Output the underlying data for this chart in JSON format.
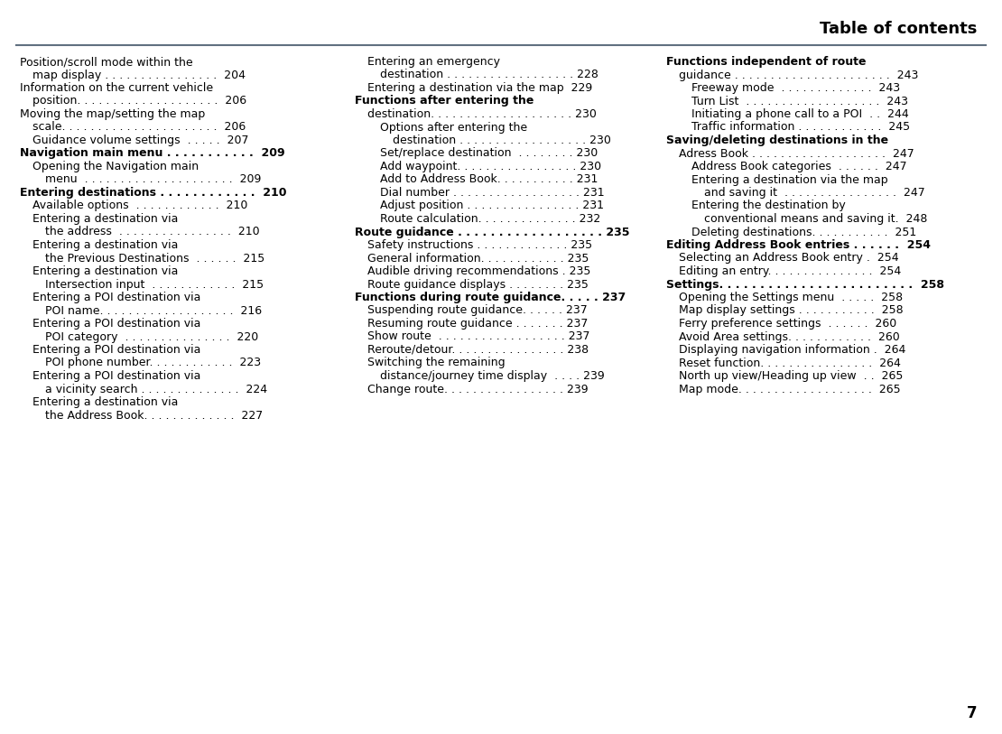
{
  "title": "Table of contents",
  "page_number": "7",
  "bg_color": "#ffffff",
  "title_color": "#000000",
  "line_color": "#607080",
  "text_color": "#000000",
  "font_size": 9.0,
  "col1_lines": [
    {
      "text": "Position/scroll mode within the",
      "indent": 0
    },
    {
      "text": "map display . . . . . . . . . . . . . . . .  204",
      "indent": 1
    },
    {
      "text": "Information on the current vehicle",
      "indent": 0
    },
    {
      "text": "position. . . . . . . . . . . . . . . . . . . .  206",
      "indent": 1
    },
    {
      "text": "Moving the map/setting the map",
      "indent": 0
    },
    {
      "text": "scale. . . . . . . . . . . . . . . . . . . . . .  206",
      "indent": 1
    },
    {
      "text": "Guidance volume settings  . . . . .  207",
      "indent": 1
    },
    {
      "text": "Navigation main menu . . . . . . . . . . .  209",
      "indent": 0
    },
    {
      "text": "Opening the Navigation main",
      "indent": 1
    },
    {
      "text": "menu  . . . . . . . . . . . . . . . . . . . . .  209",
      "indent": 2
    },
    {
      "text": "Entering destinations . . . . . . . . . . . .  210",
      "indent": 0
    },
    {
      "text": "Available options  . . . . . . . . . . . .  210",
      "indent": 1
    },
    {
      "text": "Entering a destination via",
      "indent": 1
    },
    {
      "text": "the address  . . . . . . . . . . . . . . . .  210",
      "indent": 2
    },
    {
      "text": "Entering a destination via",
      "indent": 1
    },
    {
      "text": "the Previous Destinations  . . . . . .  215",
      "indent": 2
    },
    {
      "text": "Entering a destination via",
      "indent": 1
    },
    {
      "text": "Intersection input  . . . . . . . . . . . .  215",
      "indent": 2
    },
    {
      "text": "Entering a POI destination via",
      "indent": 1
    },
    {
      "text": "POI name. . . . . . . . . . . . . . . . . . .  216",
      "indent": 2
    },
    {
      "text": "Entering a POI destination via",
      "indent": 1
    },
    {
      "text": "POI category  . . . . . . . . . . . . . . .  220",
      "indent": 2
    },
    {
      "text": "Entering a POI destination via",
      "indent": 1
    },
    {
      "text": "POI phone number. . . . . . . . . . . .  223",
      "indent": 2
    },
    {
      "text": "Entering a POI destination via",
      "indent": 1
    },
    {
      "text": "a vicinity search . . . . . . . . . . . . . .  224",
      "indent": 2
    },
    {
      "text": "Entering a destination via",
      "indent": 1
    },
    {
      "text": "the Address Book. . . . . . . . . . . . .  227",
      "indent": 2
    }
  ],
  "col2_lines": [
    {
      "text": "Entering an emergency",
      "indent": 1
    },
    {
      "text": "destination . . . . . . . . . . . . . . . . . . 228",
      "indent": 2
    },
    {
      "text": "Entering a destination via the map  229",
      "indent": 1
    },
    {
      "text": "Functions after entering the",
      "indent": 0
    },
    {
      "text": "destination. . . . . . . . . . . . . . . . . . . . 230",
      "indent": 1
    },
    {
      "text": "Options after entering the",
      "indent": 2
    },
    {
      "text": "destination . . . . . . . . . . . . . . . . . . 230",
      "indent": 3
    },
    {
      "text": "Set/replace destination  . . . . . . . . 230",
      "indent": 2
    },
    {
      "text": "Add waypoint. . . . . . . . . . . . . . . . . 230",
      "indent": 2
    },
    {
      "text": "Add to Address Book. . . . . . . . . . . 231",
      "indent": 2
    },
    {
      "text": "Dial number . . . . . . . . . . . . . . . . . . 231",
      "indent": 2
    },
    {
      "text": "Adjust position . . . . . . . . . . . . . . . . 231",
      "indent": 2
    },
    {
      "text": "Route calculation. . . . . . . . . . . . . . 232",
      "indent": 2
    },
    {
      "text": "Route guidance . . . . . . . . . . . . . . . . . . 235",
      "indent": 0
    },
    {
      "text": "Safety instructions . . . . . . . . . . . . . 235",
      "indent": 1
    },
    {
      "text": "General information. . . . . . . . . . . . 235",
      "indent": 1
    },
    {
      "text": "Audible driving recommendations . 235",
      "indent": 1
    },
    {
      "text": "Route guidance displays . . . . . . . . 235",
      "indent": 1
    },
    {
      "text": "Functions during route guidance. . . . . 237",
      "indent": 0
    },
    {
      "text": "Suspending route guidance. . . . . . 237",
      "indent": 1
    },
    {
      "text": "Resuming route guidance . . . . . . . 237",
      "indent": 1
    },
    {
      "text": "Show route  . . . . . . . . . . . . . . . . . . 237",
      "indent": 1
    },
    {
      "text": "Reroute/detour. . . . . . . . . . . . . . . . 238",
      "indent": 1
    },
    {
      "text": "Switching the remaining",
      "indent": 1
    },
    {
      "text": "distance/journey time display  . . . . 239",
      "indent": 2
    },
    {
      "text": "Change route. . . . . . . . . . . . . . . . . 239",
      "indent": 1
    }
  ],
  "col3_lines": [
    {
      "text": "Functions independent of route",
      "indent": 0
    },
    {
      "text": "guidance . . . . . . . . . . . . . . . . . . . . . .  243",
      "indent": 1
    },
    {
      "text": "Freeway mode  . . . . . . . . . . . . .  243",
      "indent": 2
    },
    {
      "text": "Turn List  . . . . . . . . . . . . . . . . . . .  243",
      "indent": 2
    },
    {
      "text": "Initiating a phone call to a POI  . .  244",
      "indent": 2
    },
    {
      "text": "Traffic information . . . . . . . . . . . .  245",
      "indent": 2
    },
    {
      "text": "Saving/deleting destinations in the",
      "indent": 0
    },
    {
      "text": "Adress Book . . . . . . . . . . . . . . . . . . .  247",
      "indent": 1
    },
    {
      "text": "Address Book categories  . . . . . .  247",
      "indent": 2
    },
    {
      "text": "Entering a destination via the map",
      "indent": 2
    },
    {
      "text": "and saving it  . . . . . . . . . . . . . . . .  247",
      "indent": 3
    },
    {
      "text": "Entering the destination by",
      "indent": 2
    },
    {
      "text": "conventional means and saving it.  248",
      "indent": 3
    },
    {
      "text": "Deleting destinations. . . . . . . . . . .  251",
      "indent": 2
    },
    {
      "text": "Editing Address Book entries . . . . . .  254",
      "indent": 0
    },
    {
      "text": "Selecting an Address Book entry .  254",
      "indent": 1
    },
    {
      "text": "Editing an entry. . . . . . . . . . . . . . .  254",
      "indent": 1
    },
    {
      "text": "Settings. . . . . . . . . . . . . . . . . . . . . . . .  258",
      "indent": 0
    },
    {
      "text": "Opening the Settings menu  . . . . .  258",
      "indent": 1
    },
    {
      "text": "Map display settings . . . . . . . . . . .  258",
      "indent": 1
    },
    {
      "text": "Ferry preference settings  . . . . . .  260",
      "indent": 1
    },
    {
      "text": "Avoid Area settings. . . . . . . . . . . .  260",
      "indent": 1
    },
    {
      "text": "Displaying navigation information .  264",
      "indent": 1
    },
    {
      "text": "Reset function. . . . . . . . . . . . . . . .  264",
      "indent": 1
    },
    {
      "text": "North up view/Heading up view  . .  265",
      "indent": 1
    },
    {
      "text": "Map mode. . . . . . . . . . . . . . . . . . .  265",
      "indent": 1
    }
  ],
  "col1_bold_indices": [
    7,
    10
  ],
  "col2_bold_indices": [
    3,
    13,
    18
  ],
  "col3_bold_indices": [
    0,
    6,
    14,
    17
  ]
}
